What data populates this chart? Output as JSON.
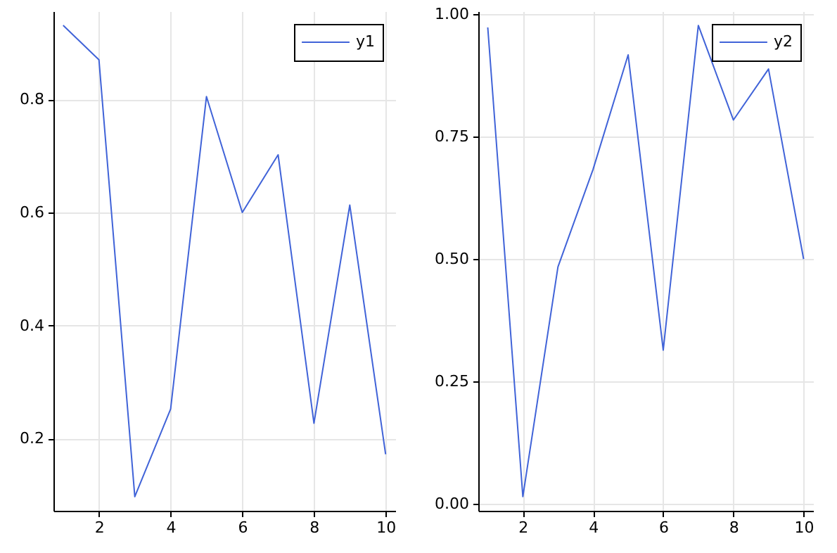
{
  "chart_data": [
    {
      "type": "line",
      "x": [
        1,
        2,
        3,
        4,
        5,
        6,
        7,
        8,
        9,
        10
      ],
      "series": [
        {
          "name": "y1",
          "color": "#4063d8",
          "values": [
            0.931,
            0.87,
            0.097,
            0.252,
            0.805,
            0.6,
            0.702,
            0.227,
            0.613,
            0.172
          ]
        }
      ],
      "xlim": [
        0.73,
        10.27
      ],
      "xticks": [
        2,
        4,
        6,
        8,
        10
      ],
      "ylim": [
        0.072,
        0.956
      ],
      "yticks": [
        0.2,
        0.4,
        0.6,
        0.8
      ],
      "grid": true,
      "legend": "top right"
    },
    {
      "type": "line",
      "x": [
        1,
        2,
        3,
        4,
        5,
        6,
        7,
        8,
        9,
        10
      ],
      "series": [
        {
          "name": "y2",
          "color": "#4063d8",
          "values": [
            0.973,
            0.015,
            0.484,
            0.683,
            0.917,
            0.314,
            0.977,
            0.784,
            0.888,
            0.5
          ]
        }
      ],
      "xlim": [
        0.73,
        10.27
      ],
      "xticks": [
        2,
        4,
        6,
        8,
        10
      ],
      "ylim": [
        -0.014,
        1.006
      ],
      "yticks": [
        {
          "value": 0,
          "label": "0.00"
        },
        {
          "value": 0.25,
          "label": "0.25"
        },
        {
          "value": 0.5,
          "label": "0.50"
        },
        {
          "value": 0.75,
          "label": "0.75"
        },
        {
          "value": 1,
          "label": "1.00"
        }
      ],
      "grid": true,
      "legend": "top right"
    }
  ]
}
